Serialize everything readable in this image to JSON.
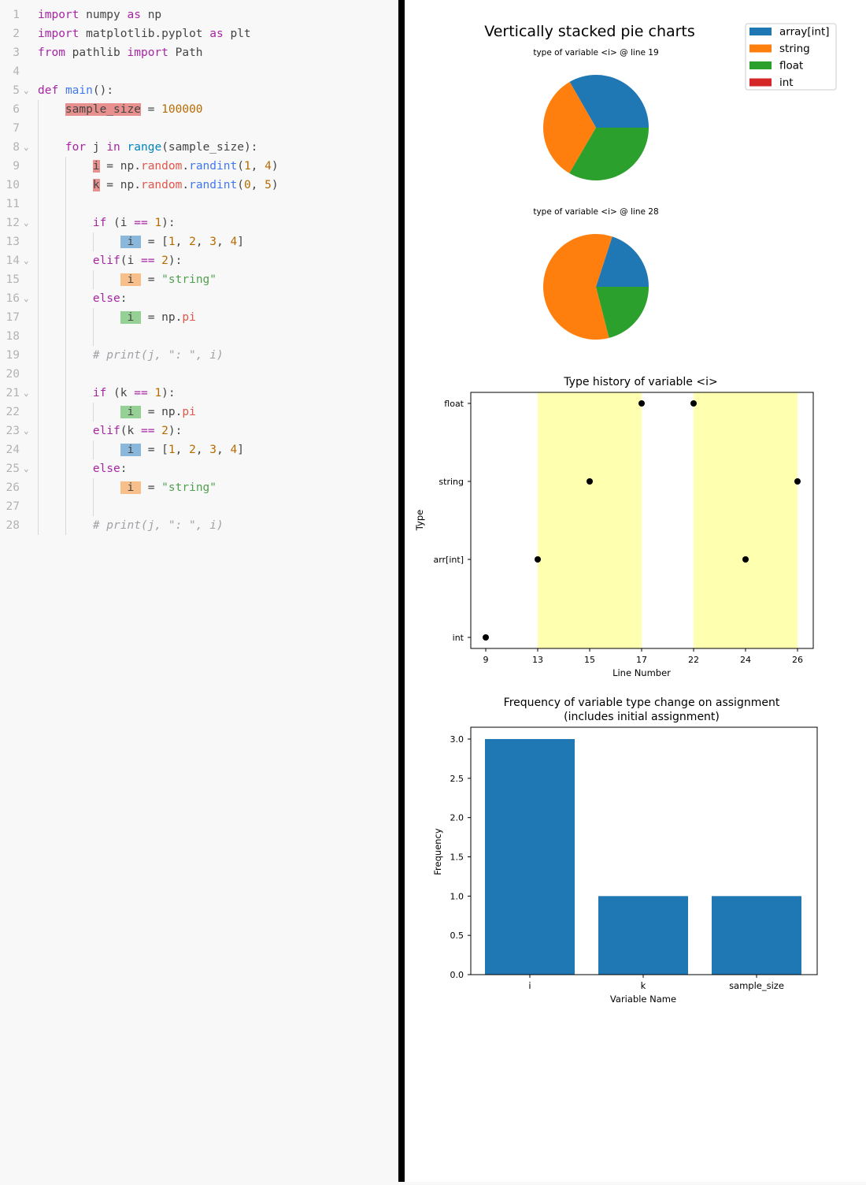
{
  "code_lines": [
    {
      "n": "1",
      "fold": "",
      "tokens": [
        {
          "t": "import",
          "c": "kw"
        },
        {
          "t": " numpy "
        },
        {
          "t": "as",
          "c": "kw"
        },
        {
          "t": " np"
        }
      ]
    },
    {
      "n": "2",
      "fold": "",
      "tokens": [
        {
          "t": "import",
          "c": "kw"
        },
        {
          "t": " matplotlib.pyplot "
        },
        {
          "t": "as",
          "c": "kw"
        },
        {
          "t": " plt"
        }
      ]
    },
    {
      "n": "3",
      "fold": "",
      "tokens": [
        {
          "t": "from",
          "c": "kw"
        },
        {
          "t": " pathlib "
        },
        {
          "t": "import",
          "c": "kw"
        },
        {
          "t": " Path"
        }
      ]
    },
    {
      "n": "4",
      "fold": "",
      "tokens": []
    },
    {
      "n": "5",
      "fold": "v",
      "tokens": [
        {
          "t": "def",
          "c": "kw"
        },
        {
          "t": " "
        },
        {
          "t": "main",
          "c": "fn"
        },
        {
          "t": "():"
        }
      ]
    },
    {
      "n": "6",
      "fold": "",
      "tokens": [
        {
          "t": "    "
        },
        {
          "t": "sample_size",
          "c": "hl-red"
        },
        {
          "t": " = "
        },
        {
          "t": "100000",
          "c": "num"
        }
      ]
    },
    {
      "n": "7",
      "fold": "",
      "tokens": []
    },
    {
      "n": "8",
      "fold": "v",
      "tokens": [
        {
          "t": "    "
        },
        {
          "t": "for",
          "c": "kw"
        },
        {
          "t": " j "
        },
        {
          "t": "in",
          "c": "kw"
        },
        {
          "t": " "
        },
        {
          "t": "range",
          "c": "bi"
        },
        {
          "t": "(sample_size):"
        }
      ]
    },
    {
      "n": "9",
      "fold": "",
      "tokens": [
        {
          "t": "        "
        },
        {
          "t": "i",
          "c": "hl-red"
        },
        {
          "t": " = np."
        },
        {
          "t": "random",
          "c": "attr"
        },
        {
          "t": "."
        },
        {
          "t": "randint",
          "c": "fn"
        },
        {
          "t": "("
        },
        {
          "t": "1",
          "c": "num"
        },
        {
          "t": ", "
        },
        {
          "t": "4",
          "c": "num"
        },
        {
          "t": ")"
        }
      ]
    },
    {
      "n": "10",
      "fold": "",
      "tokens": [
        {
          "t": "        "
        },
        {
          "t": "k",
          "c": "hl-red"
        },
        {
          "t": " = np."
        },
        {
          "t": "random",
          "c": "attr"
        },
        {
          "t": "."
        },
        {
          "t": "randint",
          "c": "fn"
        },
        {
          "t": "("
        },
        {
          "t": "0",
          "c": "num"
        },
        {
          "t": ", "
        },
        {
          "t": "5",
          "c": "num"
        },
        {
          "t": ")"
        }
      ]
    },
    {
      "n": "11",
      "fold": "",
      "tokens": []
    },
    {
      "n": "12",
      "fold": "v",
      "tokens": [
        {
          "t": "        "
        },
        {
          "t": "if",
          "c": "kw"
        },
        {
          "t": " (i "
        },
        {
          "t": "==",
          "c": "kw"
        },
        {
          "t": " "
        },
        {
          "t": "1",
          "c": "num"
        },
        {
          "t": "):"
        }
      ]
    },
    {
      "n": "13",
      "fold": "",
      "tokens": [
        {
          "t": "            "
        },
        {
          "t": " i ",
          "c": "hl-blue"
        },
        {
          "t": " = ["
        },
        {
          "t": "1",
          "c": "num"
        },
        {
          "t": ", "
        },
        {
          "t": "2",
          "c": "num"
        },
        {
          "t": ", "
        },
        {
          "t": "3",
          "c": "num"
        },
        {
          "t": ", "
        },
        {
          "t": "4",
          "c": "num"
        },
        {
          "t": "]"
        }
      ]
    },
    {
      "n": "14",
      "fold": "v",
      "tokens": [
        {
          "t": "        "
        },
        {
          "t": "elif",
          "c": "kw"
        },
        {
          "t": "(i "
        },
        {
          "t": "==",
          "c": "kw"
        },
        {
          "t": " "
        },
        {
          "t": "2",
          "c": "num"
        },
        {
          "t": "):"
        }
      ]
    },
    {
      "n": "15",
      "fold": "",
      "tokens": [
        {
          "t": "            "
        },
        {
          "t": " i ",
          "c": "hl-orange"
        },
        {
          "t": " = "
        },
        {
          "t": "\"string\"",
          "c": "str"
        }
      ]
    },
    {
      "n": "16",
      "fold": "v",
      "tokens": [
        {
          "t": "        "
        },
        {
          "t": "else",
          "c": "kw"
        },
        {
          "t": ":"
        }
      ]
    },
    {
      "n": "17",
      "fold": "",
      "tokens": [
        {
          "t": "            "
        },
        {
          "t": " i ",
          "c": "hl-green"
        },
        {
          "t": " = np."
        },
        {
          "t": "pi",
          "c": "attr"
        }
      ]
    },
    {
      "n": "18",
      "fold": "",
      "tokens": []
    },
    {
      "n": "19",
      "fold": "",
      "tokens": [
        {
          "t": "        "
        },
        {
          "t": "# print(j, \": \", i)",
          "c": "cm"
        }
      ]
    },
    {
      "n": "20",
      "fold": "",
      "tokens": []
    },
    {
      "n": "21",
      "fold": "v",
      "tokens": [
        {
          "t": "        "
        },
        {
          "t": "if",
          "c": "kw"
        },
        {
          "t": " (k "
        },
        {
          "t": "==",
          "c": "kw"
        },
        {
          "t": " "
        },
        {
          "t": "1",
          "c": "num"
        },
        {
          "t": "):"
        }
      ]
    },
    {
      "n": "22",
      "fold": "",
      "tokens": [
        {
          "t": "            "
        },
        {
          "t": " i ",
          "c": "hl-green"
        },
        {
          "t": " = np."
        },
        {
          "t": "pi",
          "c": "attr"
        }
      ]
    },
    {
      "n": "23",
      "fold": "v",
      "tokens": [
        {
          "t": "        "
        },
        {
          "t": "elif",
          "c": "kw"
        },
        {
          "t": "(k "
        },
        {
          "t": "==",
          "c": "kw"
        },
        {
          "t": " "
        },
        {
          "t": "2",
          "c": "num"
        },
        {
          "t": "):"
        }
      ]
    },
    {
      "n": "24",
      "fold": "",
      "tokens": [
        {
          "t": "            "
        },
        {
          "t": " i ",
          "c": "hl-blue"
        },
        {
          "t": " = ["
        },
        {
          "t": "1",
          "c": "num"
        },
        {
          "t": ", "
        },
        {
          "t": "2",
          "c": "num"
        },
        {
          "t": ", "
        },
        {
          "t": "3",
          "c": "num"
        },
        {
          "t": ", "
        },
        {
          "t": "4",
          "c": "num"
        },
        {
          "t": "]"
        }
      ]
    },
    {
      "n": "25",
      "fold": "v",
      "tokens": [
        {
          "t": "        "
        },
        {
          "t": "else",
          "c": "kw"
        },
        {
          "t": ":"
        }
      ]
    },
    {
      "n": "26",
      "fold": "",
      "tokens": [
        {
          "t": "            "
        },
        {
          "t": " i ",
          "c": "hl-orange"
        },
        {
          "t": " = "
        },
        {
          "t": "\"string\"",
          "c": "str"
        }
      ]
    },
    {
      "n": "27",
      "fold": "",
      "tokens": []
    },
    {
      "n": "28",
      "fold": "",
      "tokens": [
        {
          "t": "        "
        },
        {
          "t": "# print(j, \": \", i)",
          "c": "cm"
        }
      ]
    }
  ],
  "colors": {
    "array_int": "#1f77b4",
    "string": "#ff7f0e",
    "float": "#2ca02c",
    "int": "#d62728",
    "band": "#ffffb0"
  },
  "chart_data": [
    {
      "type": "pie",
      "title": "Vertically stacked pie charts",
      "legend": {
        "placement": "top-right",
        "entries": [
          "array[int]",
          "string",
          "float",
          "int"
        ]
      },
      "subplots": [
        {
          "title": "type of variable <i> @ line 19",
          "labels": [
            "array[int]",
            "string",
            "float",
            "int"
          ],
          "values": [
            33.3,
            33.3,
            33.4,
            0
          ]
        },
        {
          "title": "type of variable <i> @ line 28",
          "labels": [
            "array[int]",
            "string",
            "float",
            "int"
          ],
          "values": [
            20,
            59,
            21,
            0
          ]
        }
      ]
    },
    {
      "type": "scatter",
      "title": "Type history of variable <i>",
      "xlabel": "Line Number",
      "ylabel": "Type",
      "x_ticks": [
        "9",
        "13",
        "15",
        "17",
        "22",
        "24",
        "26"
      ],
      "y_ticks": [
        "int",
        "arr[int]",
        "string",
        "float"
      ],
      "points": [
        {
          "x": "9",
          "y": "int"
        },
        {
          "x": "13",
          "y": "arr[int]"
        },
        {
          "x": "15",
          "y": "string"
        },
        {
          "x": "17",
          "y": "float"
        },
        {
          "x": "22",
          "y": "float"
        },
        {
          "x": "24",
          "y": "arr[int]"
        },
        {
          "x": "26",
          "y": "string"
        }
      ],
      "highlight_bands": [
        [
          "13",
          "17"
        ],
        [
          "22",
          "26"
        ]
      ]
    },
    {
      "type": "bar",
      "title": "Frequency of variable type change on assignment\n(includes initial assignment)",
      "xlabel": "Variable Name",
      "ylabel": "Frequency",
      "categories": [
        "i",
        "k",
        "sample_size"
      ],
      "values": [
        3.0,
        1.0,
        1.0
      ],
      "ylim": [
        0,
        3.15
      ],
      "yticks": [
        "0.0",
        "0.5",
        "1.0",
        "1.5",
        "2.0",
        "2.5",
        "3.0"
      ]
    }
  ]
}
